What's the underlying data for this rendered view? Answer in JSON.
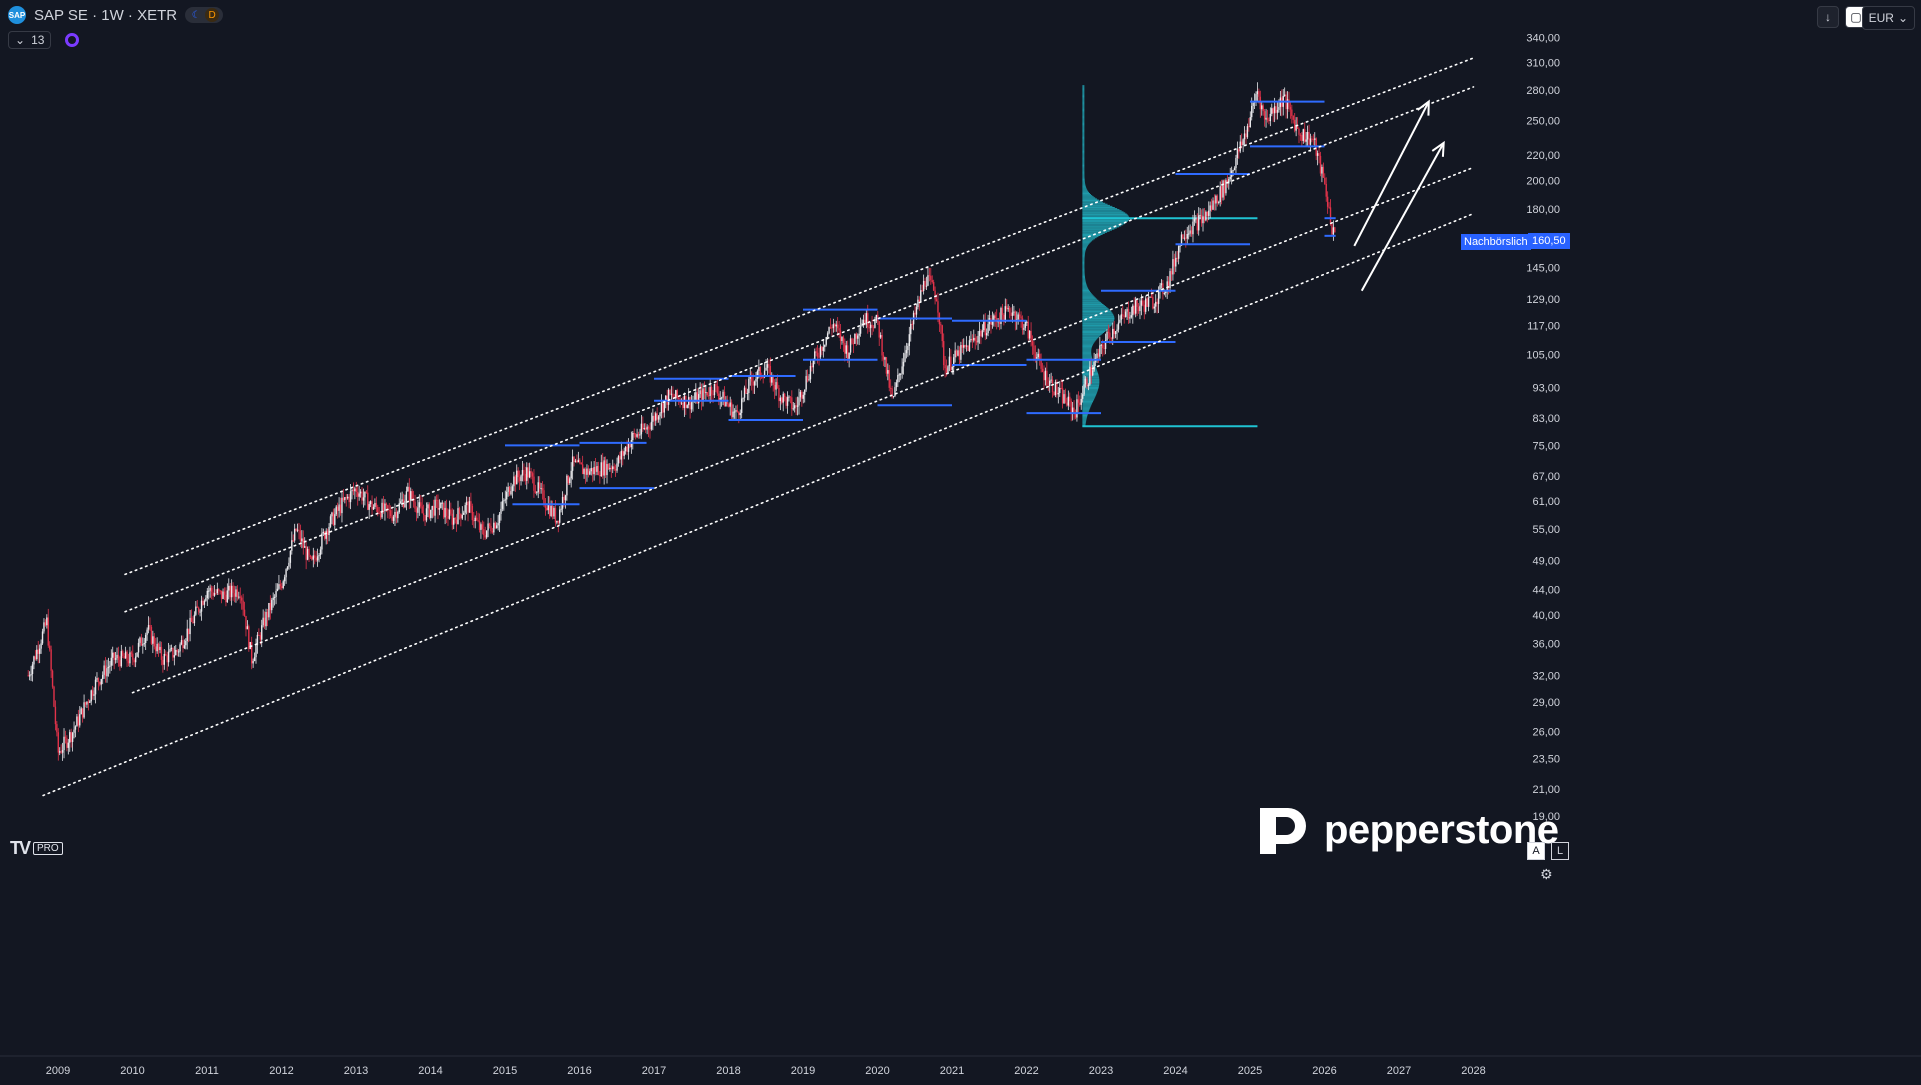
{
  "header": {
    "symbol": "SAP SE · 1W · XETR",
    "session_badge": "D",
    "indicator_count": "13",
    "currency": "EUR"
  },
  "labels": {
    "after_hours": "Nachbörslich",
    "last_price": "160,50"
  },
  "branding": {
    "platform_badge": "PRO",
    "broker": "pepperstone"
  },
  "axis_badges": {
    "auto": "A",
    "log": "L"
  },
  "chart_data": {
    "type": "candlestick",
    "interval": "1W",
    "scale": "log",
    "ylim": [
      18.5,
      345
    ],
    "xlim": [
      2008.6,
      2028.5
    ],
    "y_ticks": [
      "340,00",
      "310,00",
      "280,00",
      "250,00",
      "220,00",
      "200,00",
      "180,00",
      "160,50",
      "145,00",
      "129,00",
      "117,00",
      "105,00",
      "93,00",
      "83,00",
      "75,00",
      "67,00",
      "61,00",
      "55,00",
      "49,00",
      "44,00",
      "40,00",
      "36,00",
      "32,00",
      "29,00",
      "26,00",
      "23,50",
      "21,00",
      "19,00"
    ],
    "x_ticks": [
      "2009",
      "2010",
      "2011",
      "2012",
      "2013",
      "2014",
      "2015",
      "2016",
      "2017",
      "2018",
      "2019",
      "2020",
      "2021",
      "2022",
      "2023",
      "2024",
      "2025",
      "2026",
      "2027",
      "2028"
    ],
    "price_path": [
      [
        2008.6,
        32
      ],
      [
        2008.85,
        39
      ],
      [
        2009.0,
        24
      ],
      [
        2009.2,
        26
      ],
      [
        2009.5,
        31
      ],
      [
        2009.75,
        34
      ],
      [
        2010.0,
        34
      ],
      [
        2010.2,
        38
      ],
      [
        2010.4,
        34
      ],
      [
        2010.6,
        35
      ],
      [
        2010.8,
        39
      ],
      [
        2011.0,
        44
      ],
      [
        2011.2,
        43
      ],
      [
        2011.45,
        44
      ],
      [
        2011.6,
        34
      ],
      [
        2011.8,
        40
      ],
      [
        2012.0,
        45
      ],
      [
        2012.2,
        55
      ],
      [
        2012.4,
        48
      ],
      [
        2012.6,
        55
      ],
      [
        2012.8,
        60
      ],
      [
        2013.0,
        64
      ],
      [
        2013.2,
        60
      ],
      [
        2013.5,
        58
      ],
      [
        2013.7,
        63
      ],
      [
        2013.9,
        58
      ],
      [
        2014.1,
        60
      ],
      [
        2014.3,
        57
      ],
      [
        2014.5,
        60
      ],
      [
        2014.7,
        54
      ],
      [
        2014.9,
        57
      ],
      [
        2015.1,
        66
      ],
      [
        2015.3,
        68
      ],
      [
        2015.5,
        62
      ],
      [
        2015.7,
        57
      ],
      [
        2015.9,
        70
      ],
      [
        2016.1,
        68
      ],
      [
        2016.3,
        69
      ],
      [
        2016.5,
        70
      ],
      [
        2016.7,
        77
      ],
      [
        2016.9,
        80
      ],
      [
        2017.2,
        90
      ],
      [
        2017.5,
        88
      ],
      [
        2017.8,
        93
      ],
      [
        2018.1,
        84
      ],
      [
        2018.3,
        95
      ],
      [
        2018.5,
        100
      ],
      [
        2018.7,
        90
      ],
      [
        2018.9,
        86
      ],
      [
        2019.1,
        100
      ],
      [
        2019.4,
        118
      ],
      [
        2019.6,
        106
      ],
      [
        2019.8,
        120
      ],
      [
        2020.0,
        118
      ],
      [
        2020.2,
        88
      ],
      [
        2020.4,
        110
      ],
      [
        2020.65,
        140
      ],
      [
        2020.8,
        130
      ],
      [
        2020.9,
        100
      ],
      [
        2021.2,
        108
      ],
      [
        2021.5,
        118
      ],
      [
        2021.8,
        124
      ],
      [
        2022.0,
        116
      ],
      [
        2022.2,
        99
      ],
      [
        2022.4,
        92
      ],
      [
        2022.65,
        85
      ],
      [
        2022.85,
        98
      ],
      [
        2023.1,
        113
      ],
      [
        2023.4,
        124
      ],
      [
        2023.7,
        128
      ],
      [
        2023.9,
        137
      ],
      [
        2024.1,
        165
      ],
      [
        2024.4,
        175
      ],
      [
        2024.7,
        200
      ],
      [
        2024.95,
        240
      ],
      [
        2025.1,
        280
      ],
      [
        2025.2,
        250
      ],
      [
        2025.45,
        272
      ],
      [
        2025.65,
        240
      ],
      [
        2025.85,
        232
      ],
      [
        2026.0,
        198
      ],
      [
        2026.1,
        168
      ],
      [
        2026.15,
        160.5
      ]
    ],
    "resistance_lines": [
      {
        "x1": 2009.9,
        "y1": 46.5,
        "x2": 2028.0,
        "y2": 315
      },
      {
        "x1": 2009.9,
        "y1": 40.5,
        "x2": 2028.0,
        "y2": 283
      }
    ],
    "channel_lines": [
      {
        "x1": 2010.0,
        "y1": 30,
        "x2": 2028.0,
        "y2": 210
      },
      {
        "x1": 2008.8,
        "y1": 20.5,
        "x2": 2028.0,
        "y2": 177
      }
    ],
    "level_lines": [
      {
        "x1": 2015.0,
        "x2": 2016.0,
        "y": 75
      },
      {
        "x1": 2016.0,
        "x2": 2016.9,
        "y": 75.7
      },
      {
        "x1": 2016.0,
        "x2": 2017.0,
        "y": 64
      },
      {
        "x1": 2015.1,
        "x2": 2016.0,
        "y": 60.3
      },
      {
        "x1": 2017.0,
        "x2": 2018.0,
        "y": 96
      },
      {
        "x1": 2018.0,
        "x2": 2018.9,
        "y": 97
      },
      {
        "x1": 2017.0,
        "x2": 2018.0,
        "y": 88.5
      },
      {
        "x1": 2018.0,
        "x2": 2019.0,
        "y": 82.4
      },
      {
        "x1": 2019.0,
        "x2": 2020.0,
        "y": 124
      },
      {
        "x1": 2019.0,
        "x2": 2020.0,
        "y": 103
      },
      {
        "x1": 2020.0,
        "x2": 2021.0,
        "y": 120
      },
      {
        "x1": 2020.0,
        "x2": 2021.0,
        "y": 87
      },
      {
        "x1": 2021.0,
        "x2": 2022.0,
        "y": 119
      },
      {
        "x1": 2021.0,
        "x2": 2022.0,
        "y": 101
      },
      {
        "x1": 2022.0,
        "x2": 2023.0,
        "y": 103
      },
      {
        "x1": 2022.0,
        "x2": 2023.0,
        "y": 84.5
      },
      {
        "x1": 2023.0,
        "x2": 2024.0,
        "y": 133
      },
      {
        "x1": 2023.0,
        "x2": 2024.0,
        "y": 110
      },
      {
        "x1": 2024.0,
        "x2": 2025.0,
        "y": 205
      },
      {
        "x1": 2024.0,
        "x2": 2025.0,
        "y": 158
      },
      {
        "x1": 2025.0,
        "x2": 2026.0,
        "y": 268
      },
      {
        "x1": 2025.0,
        "x2": 2026.0,
        "y": 227
      },
      {
        "x1": 2026.0,
        "x2": 2026.15,
        "y": 174
      },
      {
        "x1": 2026.0,
        "x2": 2026.15,
        "y": 163
      }
    ],
    "volume_profile": {
      "anchor_x": 2022.75,
      "top": 285,
      "bottom": 80.5,
      "poc_price": 174,
      "value_area_low_price": 80.5,
      "poc_end_x": 2025.1
    },
    "projection_arrows": [
      {
        "x1": 2026.4,
        "y1": 157,
        "x2": 2027.4,
        "y2": 268
      },
      {
        "x1": 2026.5,
        "y1": 133,
        "x2": 2027.6,
        "y2": 230
      }
    ]
  }
}
